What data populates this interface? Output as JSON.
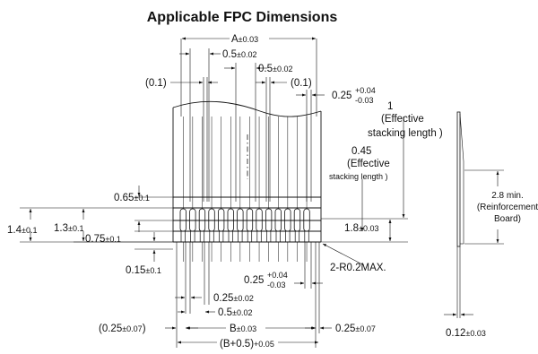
{
  "title": "Applicable FPC Dimensions",
  "dims": {
    "a_main": "A",
    "a_tol": "±0.03",
    "half_pitch_main": "0.5",
    "half_pitch_tol": "±0.02",
    "half_pitch2_main": "0.5",
    "half_pitch2_tol": "±0.02",
    "left_gap": "(0.1)",
    "right_gap": "(0.1)",
    "top_width_main": "0.25",
    "top_width_tol_up": "+0.04",
    "top_width_tol_dn": "-0.03",
    "stack_value": "1",
    "stack_label1": "(Effective",
    "stack_label2": "stacking length )",
    "stack2_value": "0.45",
    "stack2_label1": "(Effective",
    "stack2_label2": "stacking length )",
    "d065_main": "0.65",
    "d065_tol": "±0.1",
    "d14_main": "1.4",
    "d14_tol": "±0.1",
    "d13_main": "1.3",
    "d13_tol": "±0.1",
    "d075_main": "0.75",
    "d075_tol": "±0.1",
    "d18_main": "1.8",
    "d18_tol": "±0.03",
    "d015_main": "0.15",
    "d015_tol": "±0.1",
    "bottom_width_main": "0.25",
    "bottom_width_tol_up": "+0.04",
    "bottom_width_tol_dn": "-0.03",
    "radius_note": "2-R0.2MAX.",
    "b025_main": "0.25",
    "b025_tol": "±0.02",
    "b05_main": "0.5",
    "b05_tol": "±0.02",
    "left_edge_main": "(0.25",
    "left_edge_tol": "±0.07",
    "left_edge_close": ")",
    "b_main": "B",
    "b_tol": "±0.03",
    "right_edge_main": "0.25",
    "right_edge_tol": "±0.07",
    "b05_total_main": "(B+0.5)",
    "b05_total_tol": "+0.05",
    "reinf_line1": "2.8 min.",
    "reinf_line2": "(Reinforcement",
    "reinf_line3": "Board)",
    "thickness_main": "0.12",
    "thickness_tol": "±0.03"
  }
}
